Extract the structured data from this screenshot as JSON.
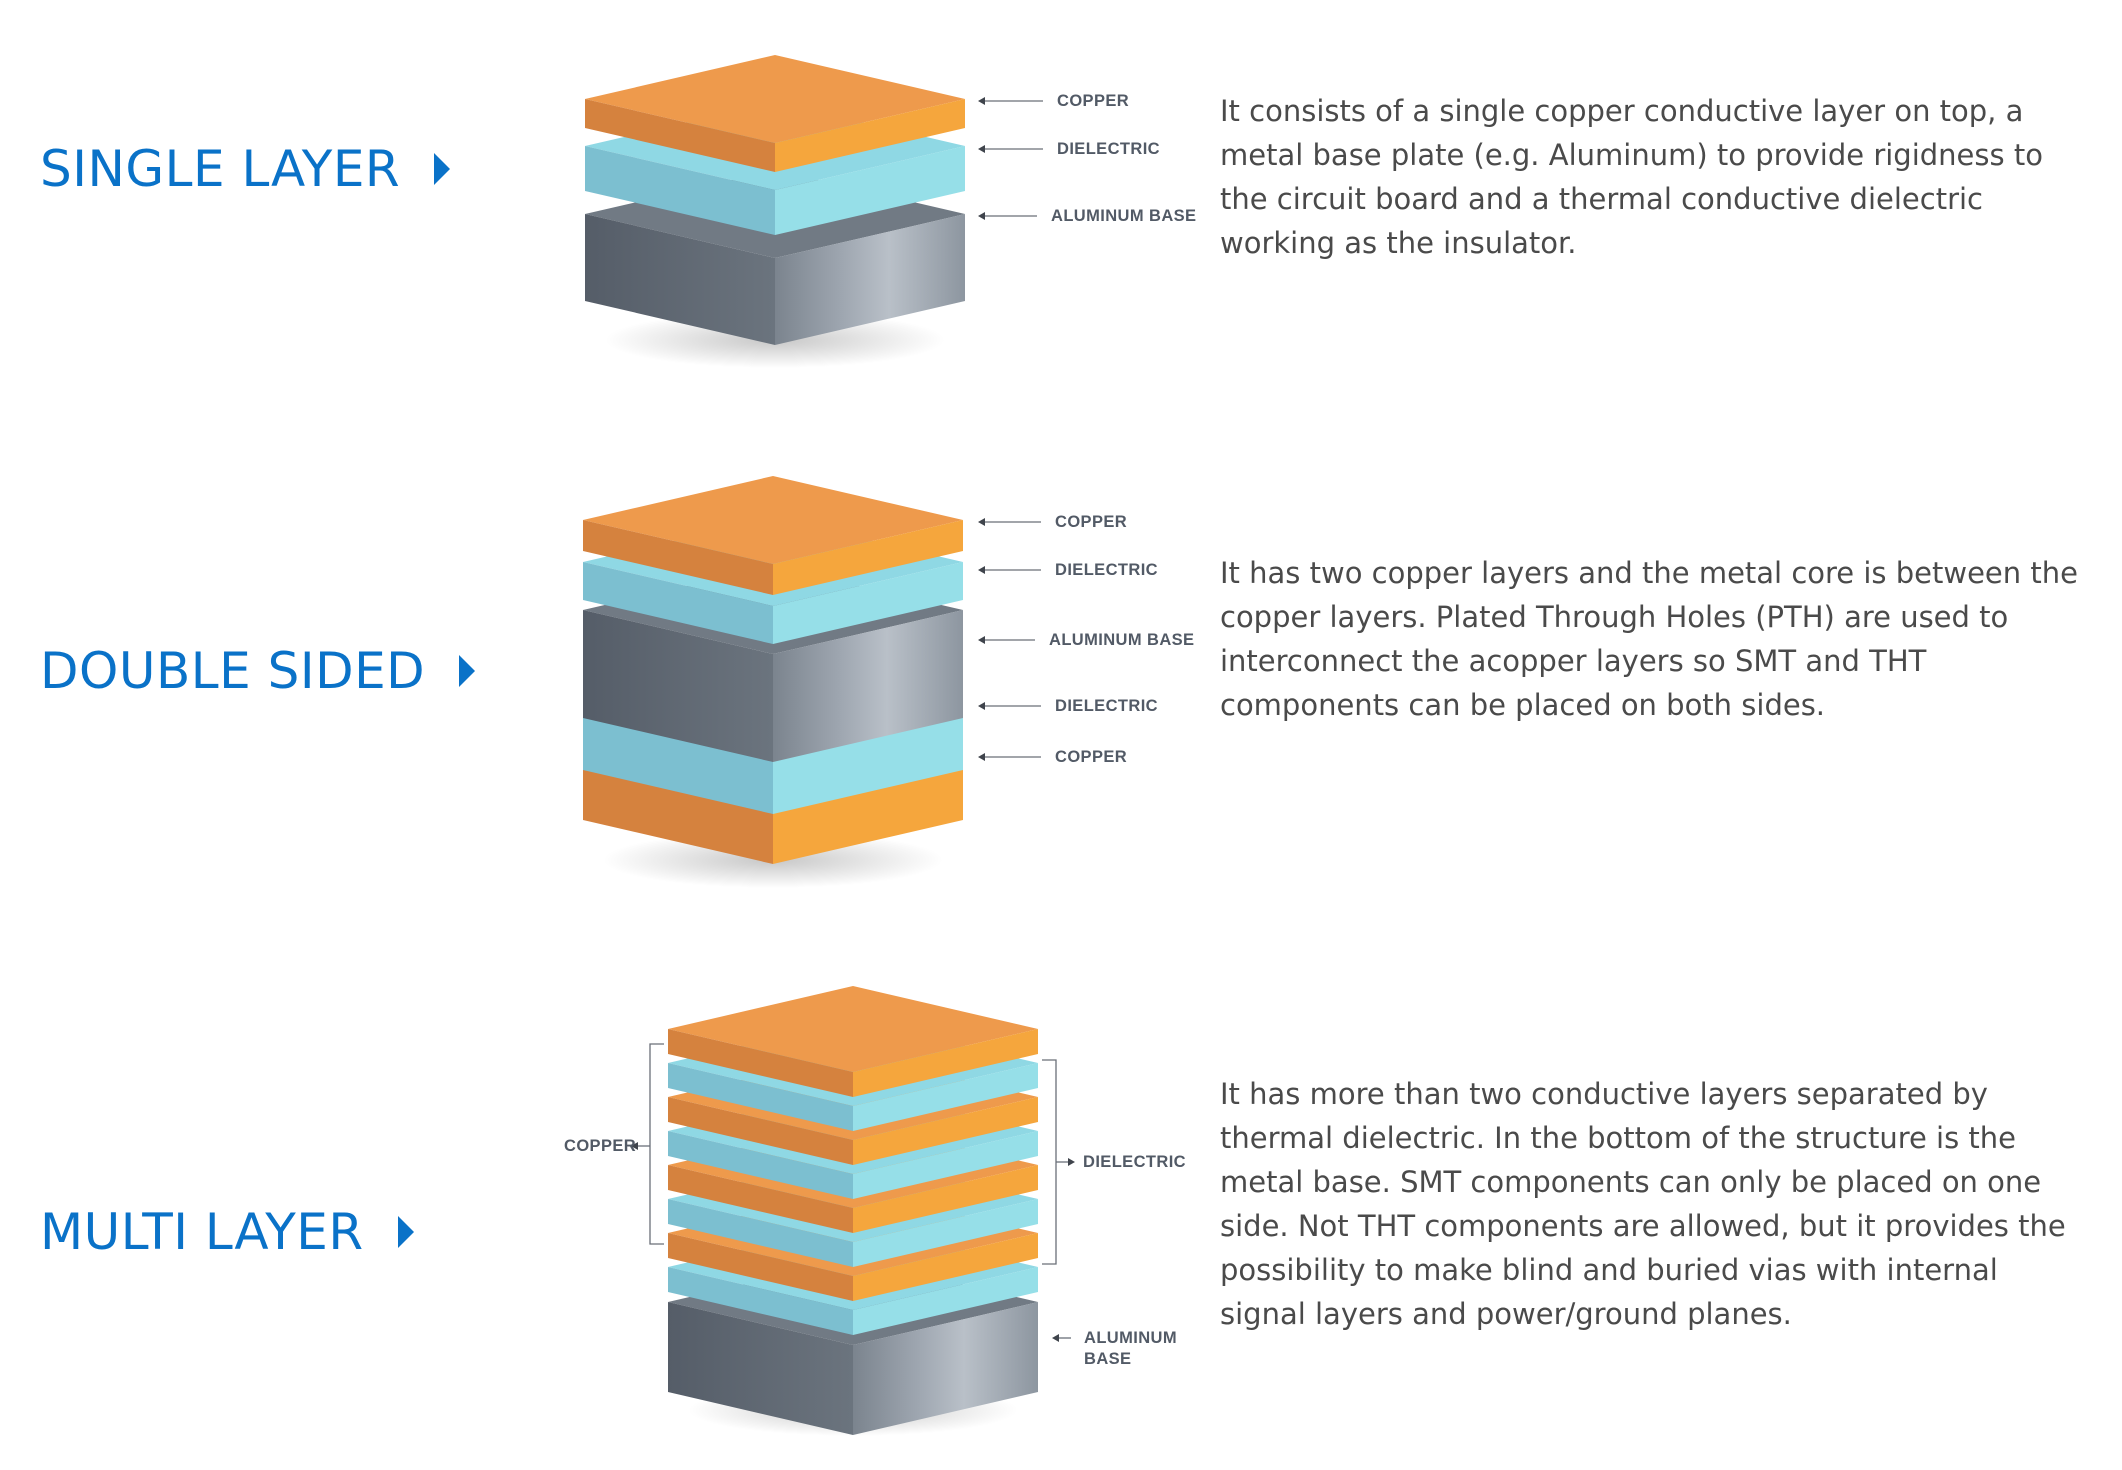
{
  "colors": {
    "accent": "#0a72c8",
    "text": "#4a4a4a",
    "label": "#525a66",
    "copper_top": "#ee9a4c",
    "copper_left": "#d5823e",
    "copper_right": "#f5a63d",
    "dielectric_top": "#8fd8e4",
    "dielectric_left": "#7cbfd0",
    "dielectric_right": "#96dfe8",
    "aluminum_top": "#717a84",
    "aluminum_left": "#5c6570",
    "aluminum_right": "#8f98a2"
  },
  "sections": [
    {
      "title": "SINGLE LAYER",
      "description": "It consists of a single copper conductive layer on top, a metal base plate (e.g. Aluminum) to provide rigidness to the circuit board and a thermal conductive dielectric working as the insulator.",
      "labels": [
        "COPPER",
        "DIELECTRIC",
        "ALUMINUM BASE"
      ]
    },
    {
      "title": "DOUBLE SIDED",
      "description": "It has two copper layers and the metal core is between the copper layers. Plated Through Holes (PTH) are used to interconnect the acopper layers so SMT and THT components can be placed on both sides.",
      "labels": [
        "COPPER",
        "DIELECTRIC",
        "ALUMINUM BASE",
        "DIELECTRIC",
        "COPPER"
      ]
    },
    {
      "title": "MULTI LAYER",
      "description": "It has more than two conductive layers separated by thermal dielectric. In the bottom of the structure is the metal base. SMT components can only be placed on one side. Not THT components are allowed, but it provides the possibility to make blind and buried vias with internal signal layers and power/ground planes.",
      "labels": [
        "COPPER",
        "DIELECTRIC",
        "ALUMINUM",
        "BASE"
      ]
    }
  ]
}
